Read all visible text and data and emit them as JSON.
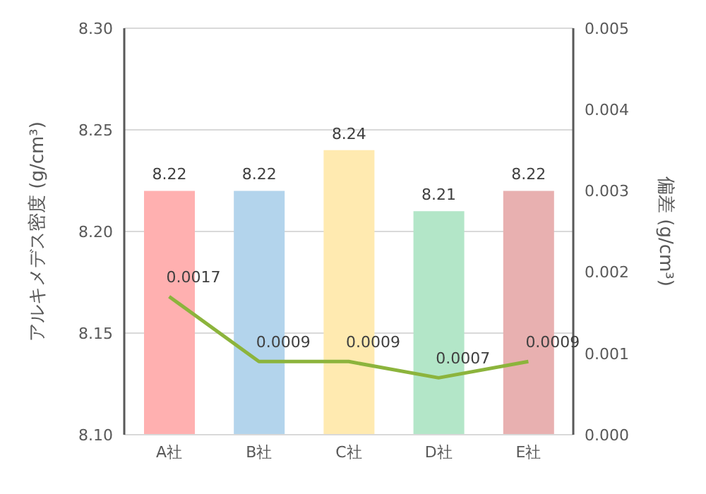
{
  "chart_data": {
    "type": "bar",
    "categories": [
      "A社",
      "B社",
      "C社",
      "D社",
      "E社"
    ],
    "series": [
      {
        "colors": [
          "#ffb0b0",
          "#b3d4ec",
          "#ffeab0",
          "#b3e6c8",
          "#e8b0b0"
        ],
        "values": [
          8.22,
          8.22,
          8.24,
          8.21,
          8.22
        ]
      },
      {
        "type": "line",
        "axis": "y2",
        "color": "#8cb43c",
        "values": [
          0.0017,
          0.0009,
          0.0009,
          0.0007,
          0.0009
        ],
        "marker": "none"
      }
    ],
    "ylabel": "アルキメデス密度 (g/cm³)",
    "y2label": "偏差 (g/cm³)",
    "ylim": [
      8.1,
      8.3
    ],
    "yticks": [
      {
        "value": 8.1,
        "label": "8.10"
      },
      8.15,
      {
        "value": 8.2,
        "label": "8.20"
      },
      8.25,
      {
        "value": 8.3,
        "label": "8.30"
      }
    ],
    "y2lim": [
      0,
      0.005
    ],
    "y2ticks": [
      {
        "value": 0,
        "label": "0.000"
      },
      0.001,
      0.002,
      0.003,
      0.004,
      0.005
    ],
    "grid": "y",
    "data_labels": true
  }
}
